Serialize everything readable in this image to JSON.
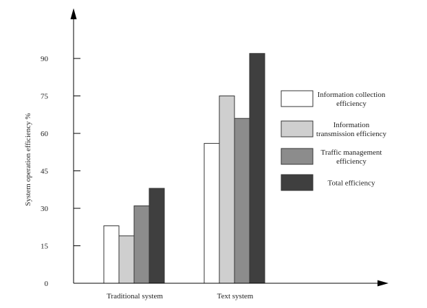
{
  "chart_data": {
    "type": "bar",
    "title": "",
    "xlabel": "",
    "ylabel": "System operation efficiency %",
    "ylim": [
      0,
      105
    ],
    "yticks": [
      0,
      15,
      30,
      45,
      60,
      75,
      90
    ],
    "ytick_labels": [
      "0",
      "15",
      "30",
      "45",
      "60",
      "75",
      "90"
    ],
    "categories": [
      "Traditional system",
      "Text system"
    ],
    "series": [
      {
        "name": "Information collection efficiency",
        "legend_lines": [
          "Information collection",
          "efficiency"
        ],
        "color": "#ffffff",
        "values": [
          23,
          56
        ]
      },
      {
        "name": "Information transmission efficiency",
        "legend_lines": [
          "Information",
          "transmission efficiency"
        ],
        "color": "#cfcfcf",
        "values": [
          19,
          75
        ]
      },
      {
        "name": "Traffic management efficiency",
        "legend_lines": [
          "Traffic management",
          "efficiency"
        ],
        "color": "#8c8c8c",
        "values": [
          31,
          66
        ]
      },
      {
        "name": "Total efficiency",
        "legend_lines": [
          "Total efficiency"
        ],
        "color": "#3f3f3f",
        "values": [
          38,
          92
        ]
      }
    ],
    "grid": false,
    "legend_position": "right"
  }
}
